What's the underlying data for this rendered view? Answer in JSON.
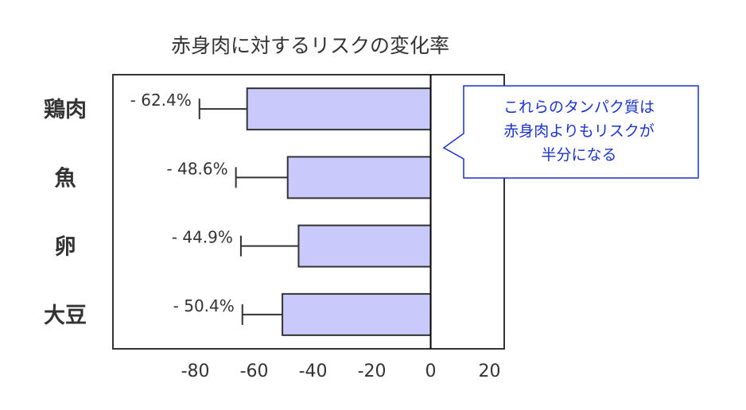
{
  "chart_data": {
    "type": "bar",
    "orientation": "horizontal",
    "title": "赤身肉に対するリスクの変化率",
    "categories": [
      "鶏肉",
      "魚",
      "卵",
      "大豆"
    ],
    "values": [
      -62.4,
      -48.6,
      -44.9,
      -50.4
    ],
    "error_bar_lower": [
      -78.6,
      -66.2,
      -64.5,
      -64.0
    ],
    "data_labels": [
      "- 62.4%",
      "- 48.6%",
      "- 44.9%",
      "- 50.4%"
    ],
    "xlim": [
      -108,
      25
    ],
    "xticks": [
      -80,
      -60,
      -40,
      -20,
      0,
      20
    ],
    "xlabel": "",
    "ylabel": "",
    "grid": false,
    "bar_color": "#c9c9fb",
    "annotation": [
      "これらのタンパク質は",
      "赤身肉よりもリスクが",
      "半分になる"
    ],
    "annotation_color": "#1a33cc"
  }
}
